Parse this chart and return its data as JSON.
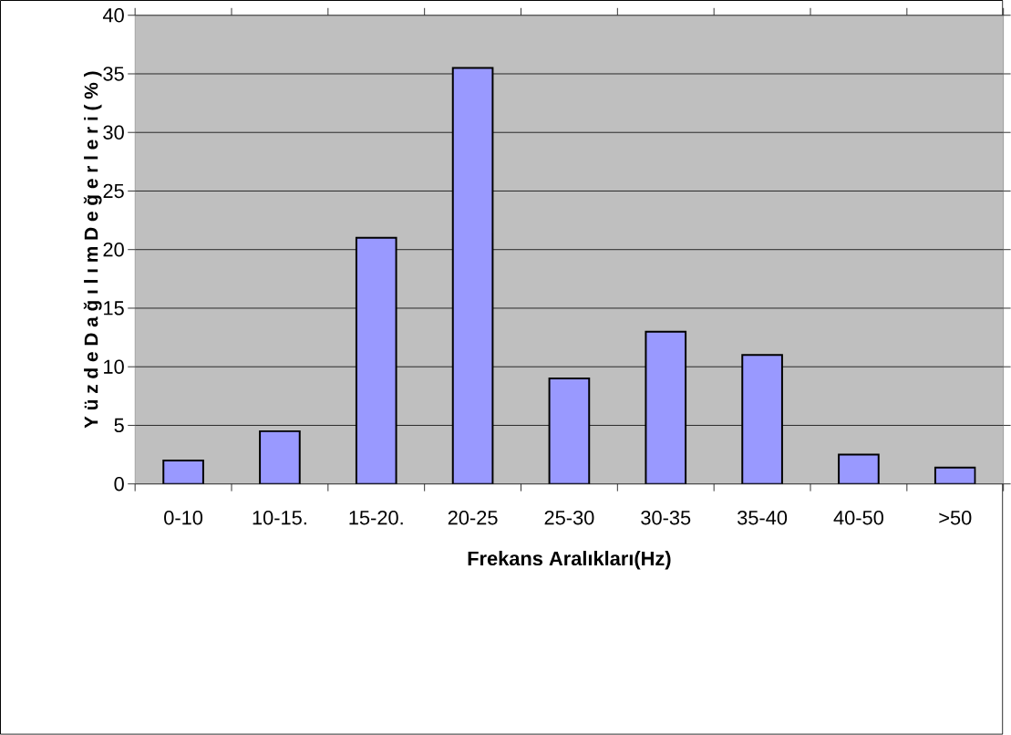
{
  "chart_data": {
    "type": "bar",
    "xlabel": "Frekans Aralıkları(Hz)",
    "ylabel": "Y ü z d e  D a ğ ı l ı m  D e ğ e r l e r i  ( % )",
    "categories": [
      "0-10",
      "10-15.",
      "15-20.",
      "20-25",
      "25-30",
      "30-35",
      "35-40",
      "40-50",
      ">50"
    ],
    "values": [
      2,
      4.5,
      21,
      35.5,
      9,
      13,
      11,
      2.5,
      1.4
    ],
    "color": "#9999ff",
    "ylim": [
      0,
      40
    ],
    "yticks": [
      0,
      5,
      10,
      15,
      20,
      25,
      30,
      35,
      40
    ],
    "grid": "y"
  }
}
